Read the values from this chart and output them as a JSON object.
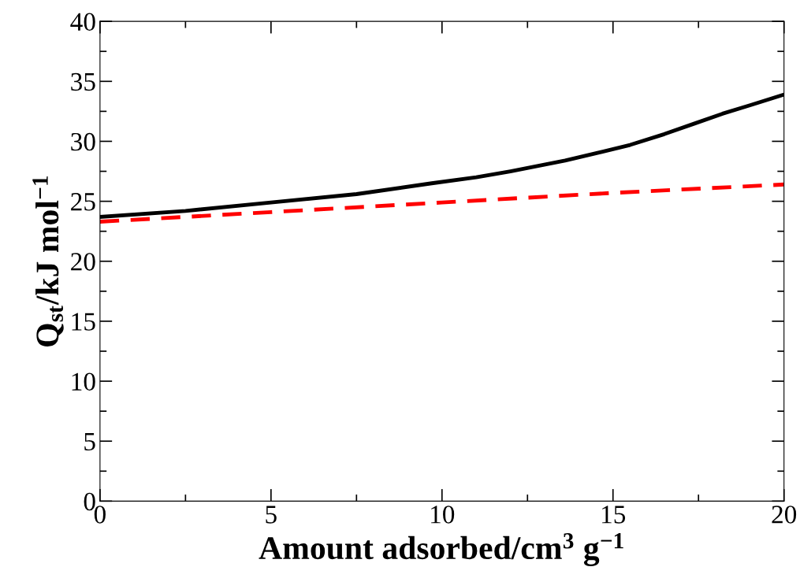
{
  "chart_data": {
    "type": "line",
    "xlabel": "Amount adsorbed/cm$^{3}$ g$^{−1}$",
    "ylabel": "Q$_{st}$/kJ mol$^{−1}$",
    "xlim": [
      0,
      20
    ],
    "ylim": [
      0,
      40
    ],
    "xticks": [
      0,
      5,
      10,
      15,
      20
    ],
    "yticks": [
      0,
      5,
      10,
      15,
      20,
      25,
      30,
      35,
      40
    ],
    "grid": false,
    "legend": false,
    "series": [
      {
        "color": "#000000",
        "line_style": "solid",
        "x": [
          0,
          2.5,
          5,
          7.5,
          9.7,
          11,
          12,
          13.6,
          14.5,
          15.5,
          16.5,
          17.4,
          18.2,
          19,
          20
        ],
        "values": [
          23.7,
          24.2,
          24.9,
          25.6,
          26.5,
          27.0,
          27.5,
          28.4,
          29.0,
          29.7,
          30.6,
          31.5,
          32.3,
          33.0,
          33.9
        ]
      },
      {
        "color": "#ff0000",
        "line_style": "dashed",
        "x": [
          0,
          5,
          10,
          15,
          20
        ],
        "values": [
          23.3,
          24.1,
          24.9,
          25.7,
          26.4
        ]
      }
    ]
  }
}
